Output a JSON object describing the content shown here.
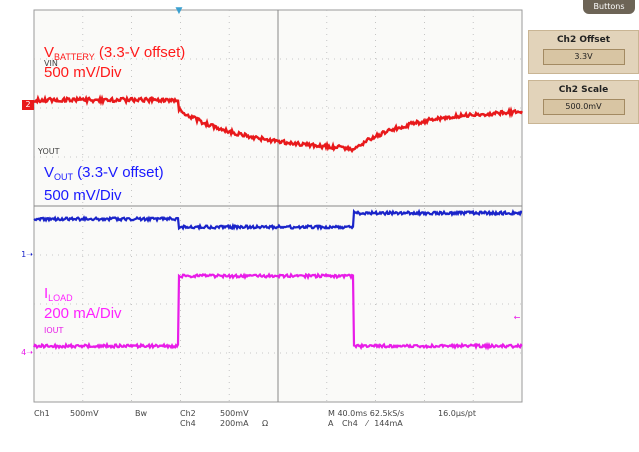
{
  "labels": {
    "vin": "VIN",
    "vout": "YOUT",
    "iout": "IOUT",
    "battery_main": "V",
    "battery_sub": "BATTERY",
    "battery_offset": " (3.3-V offset)",
    "battery_scale": "500 mV/Div",
    "out_main": "V",
    "out_sub": "OUT",
    "out_offset": " (3.3-V offset)",
    "out_scale": "500 mV/Div",
    "load_main": "I",
    "load_sub": "LOAD",
    "load_scale": "200 mA/Div"
  },
  "channel_markers": {
    "ch2": "2",
    "ch1": "1",
    "ch4": "4"
  },
  "status_bar": {
    "ch1": "Ch1",
    "ch1_scale": "500mV",
    "bw": "Bw",
    "ch2": "Ch2",
    "ch2_scale": "500mV",
    "ch4": "Ch4",
    "ch4_scale": "200mA",
    "ohm": "Ω",
    "timebase": "M 40.0ms 62.5kS/s",
    "points": "16.0µs/pt",
    "trigger_prefix": "A",
    "trigger_channel": "Ch4",
    "trigger_slope": "⁄",
    "trigger_level": "144mA"
  },
  "side_menu": {
    "top_tab": "Buttons",
    "offset_title": "Ch2 Offset",
    "offset_value": "3.3V",
    "scale_title": "Ch2 Scale",
    "scale_value": "500.0mV"
  },
  "colors": {
    "battery": "#e8191b",
    "vout": "#1a24c9",
    "iload": "#e81ce8",
    "menu_bg": "#e2d3ba"
  }
}
